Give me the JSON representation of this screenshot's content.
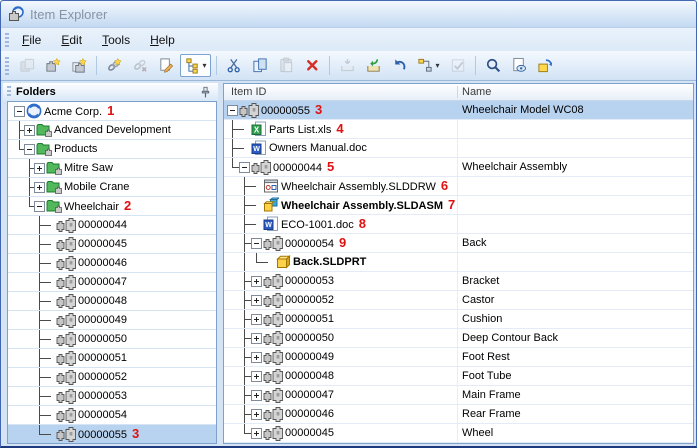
{
  "window": {
    "title": "Item Explorer",
    "icon": "item-explorer-app-icon"
  },
  "menu": {
    "items": [
      {
        "label": "File",
        "underline": 0
      },
      {
        "label": "Edit",
        "underline": 0
      },
      {
        "label": "Tools",
        "underline": 0
      },
      {
        "label": "Help",
        "underline": 0
      }
    ]
  },
  "toolbar": {
    "buttons": [
      {
        "name": "copy-item",
        "icon": "item-copy-icon",
        "disabled": true
      },
      {
        "name": "new-item",
        "icon": "new-item-icon"
      },
      {
        "name": "new-item-from-copy",
        "icon": "new-item-copy-icon"
      },
      {
        "sep": true
      },
      {
        "name": "create-link",
        "icon": "link-star-icon"
      },
      {
        "name": "remove-link",
        "icon": "unlink-icon",
        "disabled": true
      },
      {
        "name": "edit-item",
        "icon": "edit-doc-icon"
      },
      {
        "name": "view-mode",
        "icon": "tree-view-icon",
        "pressed": true,
        "caret": true
      },
      {
        "sep": true
      },
      {
        "name": "cut",
        "icon": "cut-icon"
      },
      {
        "name": "copy",
        "icon": "copy-icon"
      },
      {
        "name": "paste",
        "icon": "paste-icon",
        "disabled": true
      },
      {
        "name": "delete",
        "icon": "delete-icon"
      },
      {
        "sep": true
      },
      {
        "name": "check-out",
        "icon": "check-out-icon",
        "disabled": true
      },
      {
        "name": "check-in",
        "icon": "check-in-icon"
      },
      {
        "name": "undo-check-out",
        "icon": "undo-icon"
      },
      {
        "name": "change-state",
        "icon": "workflow-icon",
        "caret": true
      },
      {
        "name": "approve",
        "icon": "approve-icon",
        "disabled": true
      },
      {
        "sep": true
      },
      {
        "name": "search",
        "icon": "search-icon"
      },
      {
        "name": "preview",
        "icon": "preview-icon"
      },
      {
        "name": "pack-and-go",
        "icon": "package-icon"
      }
    ]
  },
  "left_panel": {
    "title": "Folders",
    "pin_icon": "pin-icon",
    "tree": [
      {
        "level": 0,
        "expander": "minus",
        "icon": "vault",
        "label": "Acme Corp.",
        "annotation": "1"
      },
      {
        "level": 1,
        "expander": "plus",
        "icon": "folder",
        "label": "Advanced Development"
      },
      {
        "level": 1,
        "expander": "minus",
        "icon": "folder",
        "label": "Products"
      },
      {
        "level": 2,
        "expander": "plus",
        "icon": "folder",
        "label": "Mitre Saw"
      },
      {
        "level": 2,
        "expander": "plus",
        "icon": "folder",
        "label": "Mobile Crane"
      },
      {
        "level": 2,
        "expander": "minus",
        "icon": "folder",
        "label": "Wheelchair",
        "annotation": "2"
      },
      {
        "level": 3,
        "expander": "none",
        "icon": "item",
        "label": "00000044"
      },
      {
        "level": 3,
        "expander": "none",
        "icon": "item",
        "label": "00000045"
      },
      {
        "level": 3,
        "expander": "none",
        "icon": "item",
        "label": "00000046"
      },
      {
        "level": 3,
        "expander": "none",
        "icon": "item",
        "label": "00000047"
      },
      {
        "level": 3,
        "expander": "none",
        "icon": "item",
        "label": "00000048"
      },
      {
        "level": 3,
        "expander": "none",
        "icon": "item",
        "label": "00000049"
      },
      {
        "level": 3,
        "expander": "none",
        "icon": "item",
        "label": "00000050"
      },
      {
        "level": 3,
        "expander": "none",
        "icon": "item",
        "label": "00000051"
      },
      {
        "level": 3,
        "expander": "none",
        "icon": "item",
        "label": "00000052"
      },
      {
        "level": 3,
        "expander": "none",
        "icon": "item",
        "label": "00000053"
      },
      {
        "level": 3,
        "expander": "none",
        "icon": "item",
        "label": "00000054"
      },
      {
        "level": 3,
        "expander": "none",
        "icon": "item",
        "label": "00000055",
        "annotation": "3",
        "selected": true
      }
    ]
  },
  "right_panel": {
    "columns": [
      "Item ID",
      "Name"
    ],
    "rows": [
      {
        "level": 0,
        "expander": "minus",
        "icon": "item",
        "label": "00000055",
        "annotation": "3",
        "name": "Wheelchair Model WC08",
        "selected": true
      },
      {
        "level": 1,
        "expander": "none",
        "icon": "excel",
        "label": "Parts List.xls",
        "annotation": "4",
        "name": ""
      },
      {
        "level": 1,
        "expander": "none",
        "icon": "word",
        "label": "Owners Manual.doc",
        "name": ""
      },
      {
        "level": 1,
        "expander": "minus",
        "icon": "item",
        "label": "00000044",
        "annotation": "5",
        "name": "Wheelchair Assembly"
      },
      {
        "level": 2,
        "expander": "none",
        "icon": "drawing",
        "label": "Wheelchair Assembly.SLDDRW",
        "annotation": "6",
        "name": ""
      },
      {
        "level": 2,
        "expander": "none",
        "icon": "assembly",
        "label": "Wheelchair Assembly.SLDASM",
        "annotation": "7",
        "bold": true,
        "name": ""
      },
      {
        "level": 2,
        "expander": "none",
        "icon": "word",
        "label": "ECO-1001.doc",
        "annotation": "8",
        "name": ""
      },
      {
        "level": 2,
        "expander": "minus",
        "icon": "item",
        "label": "00000054",
        "annotation": "9",
        "name": "Back"
      },
      {
        "level": 3,
        "expander": "none",
        "icon": "part",
        "label": "Back.SLDPRT",
        "bold": true,
        "name": ""
      },
      {
        "level": 2,
        "expander": "plus",
        "icon": "item",
        "label": "00000053",
        "name": "Bracket"
      },
      {
        "level": 2,
        "expander": "plus",
        "icon": "item",
        "label": "00000052",
        "name": "Castor"
      },
      {
        "level": 2,
        "expander": "plus",
        "icon": "item",
        "label": "00000051",
        "name": "Cushion"
      },
      {
        "level": 2,
        "expander": "plus",
        "icon": "item",
        "label": "00000050",
        "name": "Deep Contour Back"
      },
      {
        "level": 2,
        "expander": "plus",
        "icon": "item",
        "label": "00000049",
        "name": "Foot Rest"
      },
      {
        "level": 2,
        "expander": "plus",
        "icon": "item",
        "label": "00000048",
        "name": "Foot Tube"
      },
      {
        "level": 2,
        "expander": "plus",
        "icon": "item",
        "label": "00000047",
        "name": "Main Frame"
      },
      {
        "level": 2,
        "expander": "plus",
        "icon": "item",
        "label": "00000046",
        "name": "Rear Frame"
      },
      {
        "level": 2,
        "expander": "plus",
        "icon": "item",
        "label": "00000045",
        "name": "Wheel"
      }
    ]
  },
  "colors": {
    "selection": "#b8d3f0",
    "annotation_red": "#e01111",
    "window_border": "#4367b1",
    "panel_border": "#7da0cc",
    "titlebar_gradient_top": "#f2f8fe",
    "titlebar_gradient_bottom": "#c3d9f1"
  }
}
